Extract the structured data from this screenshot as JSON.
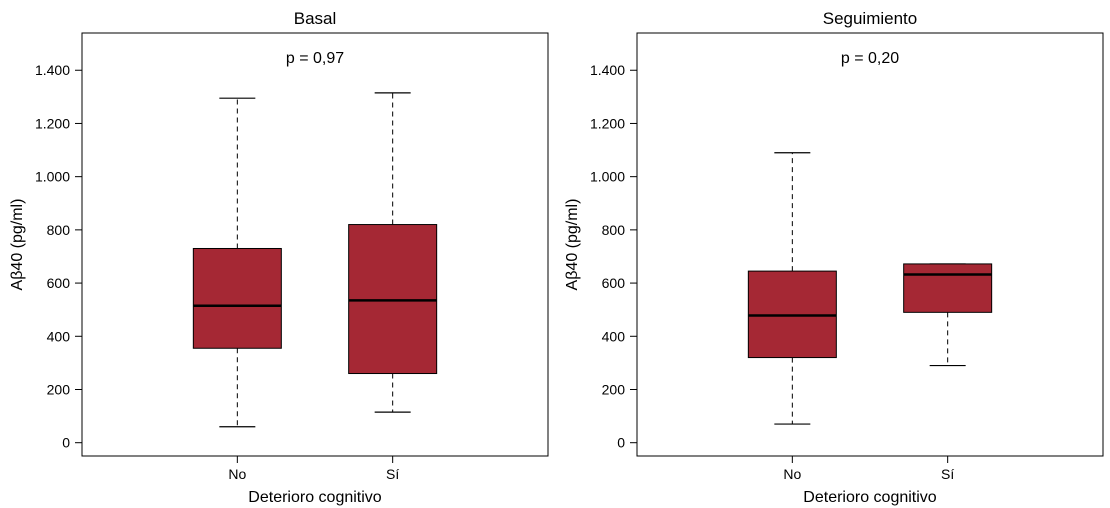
{
  "colors": {
    "box_fill": "#a52834",
    "stroke": "#000000"
  },
  "chart_data": [
    {
      "type": "box",
      "title": "Basal",
      "annotation": "p = 0,97",
      "xlabel": "Deterioro cognitivo",
      "ylabel": "Aβ40 (pg/ml)",
      "ylim": [
        -50,
        1540
      ],
      "yticks": [
        0,
        200,
        400,
        600,
        800,
        1000,
        1200,
        1400
      ],
      "ytick_labels": [
        "0",
        "200",
        "400",
        "600",
        "800",
        "1.000",
        "1.200",
        "1.400"
      ],
      "categories": [
        "No",
        "Sí"
      ],
      "boxes": [
        {
          "category": "No",
          "min": 60,
          "q1": 355,
          "median": 515,
          "q3": 730,
          "max": 1295
        },
        {
          "category": "Sí",
          "min": 115,
          "q1": 260,
          "median": 535,
          "q3": 820,
          "max": 1315
        }
      ]
    },
    {
      "type": "box",
      "title": "Seguimiento",
      "annotation": "p = 0,20",
      "xlabel": "Deterioro cognitivo",
      "ylabel": "Aβ40 (pg/ml)",
      "ylim": [
        -50,
        1540
      ],
      "yticks": [
        0,
        200,
        400,
        600,
        800,
        1000,
        1200,
        1400
      ],
      "ytick_labels": [
        "0",
        "200",
        "400",
        "600",
        "800",
        "1.000",
        "1.200",
        "1.400"
      ],
      "categories": [
        "No",
        "Sí"
      ],
      "boxes": [
        {
          "category": "No",
          "min": 70,
          "q1": 320,
          "median": 478,
          "q3": 645,
          "max": 1090
        },
        {
          "category": "Sí",
          "min": 290,
          "q1": 490,
          "median": 632,
          "q3": 672,
          "max": 672
        }
      ]
    }
  ]
}
